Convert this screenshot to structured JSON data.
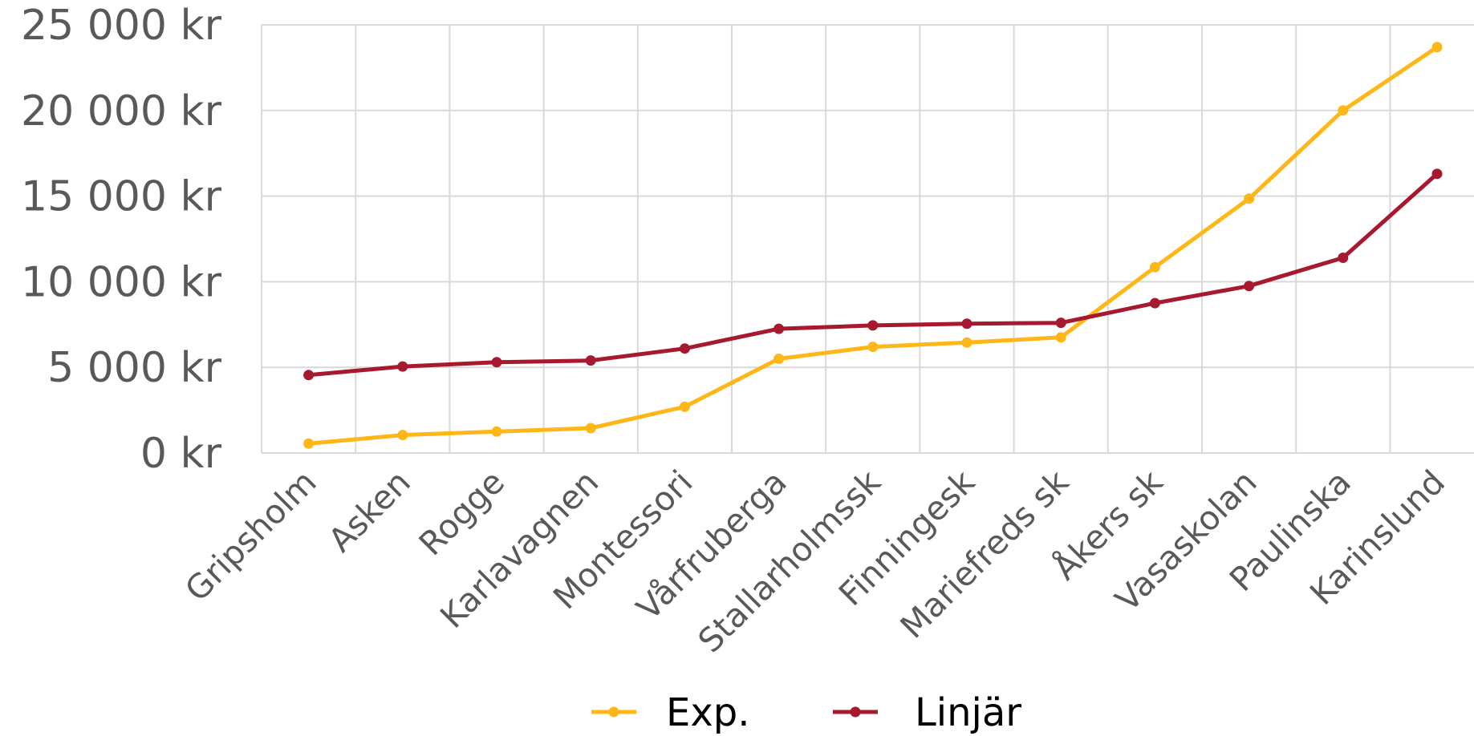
{
  "chart_data": {
    "type": "line",
    "categories": [
      "Gripsholm",
      "Asken",
      "Rogge",
      "Karlavagnen",
      "Montessori",
      "Vårfruberga",
      "Stallarholmssk",
      "Finningesk",
      "Mariefreds sk",
      "Åkers sk",
      "Vasaskolan",
      "Paulinska",
      "Karinslund"
    ],
    "series": [
      {
        "name": "Exp.",
        "color": "#ffb718",
        "values": [
          550,
          1050,
          1250,
          1450,
          2700,
          5500,
          6200,
          6450,
          6750,
          10850,
          14850,
          20000,
          23700
        ]
      },
      {
        "name": "Linjär",
        "color": "#a6192e",
        "values": [
          4550,
          5050,
          5300,
          5400,
          6100,
          7250,
          7450,
          7550,
          7600,
          8750,
          9750,
          11400,
          16300
        ]
      }
    ],
    "yticks": [
      "0 kr",
      "5 000 kr",
      "10 000 kr",
      "15 000 kr",
      "20 000 kr",
      "25 000 kr"
    ],
    "ylim": [
      0,
      25000
    ],
    "grid": true,
    "legend": "bottom"
  }
}
